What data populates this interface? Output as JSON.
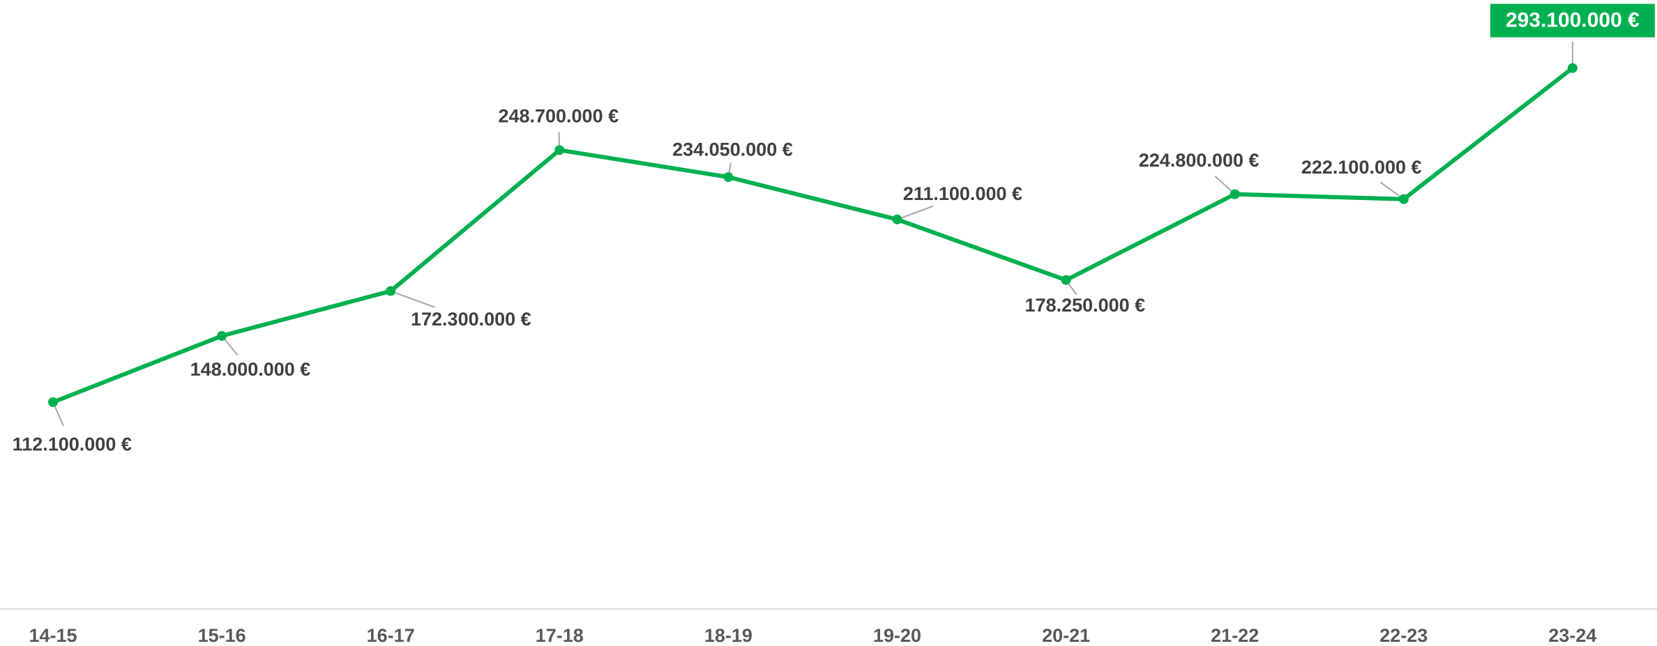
{
  "chart_data": {
    "type": "line",
    "categories": [
      "14-15",
      "15-16",
      "16-17",
      "17-18",
      "18-19",
      "19-20",
      "20-21",
      "21-22",
      "22-23",
      "23-24"
    ],
    "values": [
      112100000,
      148000000,
      172300000,
      248700000,
      234050000,
      211100000,
      178250000,
      224800000,
      222100000,
      293100000
    ],
    "value_labels": [
      "112.100.000 €",
      "148.000.000 €",
      "172.300.000 €",
      "248.700.000 €",
      "234.050.000 €",
      "211.100.000 €",
      "178.250.000 €",
      "224.800.000 €",
      "222.100.000 €",
      "293.100.000 €"
    ],
    "color": "#00b050",
    "ylim": [
      0,
      330000000
    ]
  }
}
